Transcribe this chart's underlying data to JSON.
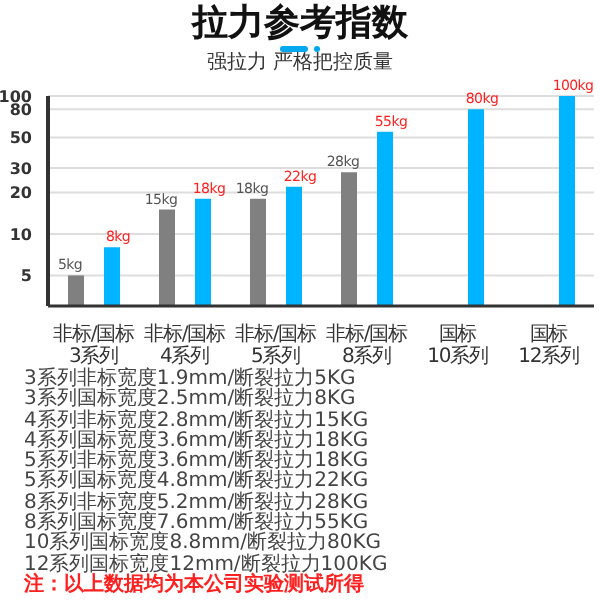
{
  "chart_data": {
    "type": "bar",
    "title": "拉力参考指数",
    "subtitle": "强拉力 严格把控质量",
    "categories": [
      "非标/国标\n3系列",
      "非标/国标\n4系列",
      "非标/国标\n5系列",
      "非标/国标\n8系列",
      "国标\n10系列",
      "国标\n12系列"
    ],
    "series": [
      {
        "color": "#808080",
        "values": [
          5,
          15,
          18,
          28,
          null,
          null
        ],
        "value_labels": [
          "5kg",
          "15kg",
          "18kg",
          "28kg",
          null,
          null
        ]
      },
      {
        "color": "#00b4ff",
        "values": [
          8,
          18,
          22,
          55,
          80,
          100
        ],
        "value_labels": [
          "8kg",
          "18kg",
          "22kg",
          "55kg",
          "80kg",
          "100kg"
        ]
      }
    ],
    "ylim": [
      3,
      100
    ],
    "log": true,
    "yticks": [
      5,
      10,
      20,
      30,
      50,
      80,
      100
    ],
    "grid": "y",
    "annotations": [
      "3系列非标宽度1.9mm/断裂拉力5KG",
      "3系列国标宽度2.5mm/断裂拉力8KG",
      "4系列非标宽度2.8mm/断裂拉力15KG",
      "4系列国标宽度3.6mm/断裂拉力18KG",
      "5系列非标宽度3.6mm/断裂拉力18KG",
      "5系列国标宽度4.8mm/断裂拉力22KG",
      "8系列非标宽度5.2mm/断裂拉力28KG",
      "8系列国标宽度7.6mm/断裂拉力55KG",
      "10系列国标宽度8.8mm/断裂拉力80KG",
      "12系列国标宽度12mm/断裂拉力100KG",
      "注：以上数据均为本公司实验测试所得"
    ]
  }
}
